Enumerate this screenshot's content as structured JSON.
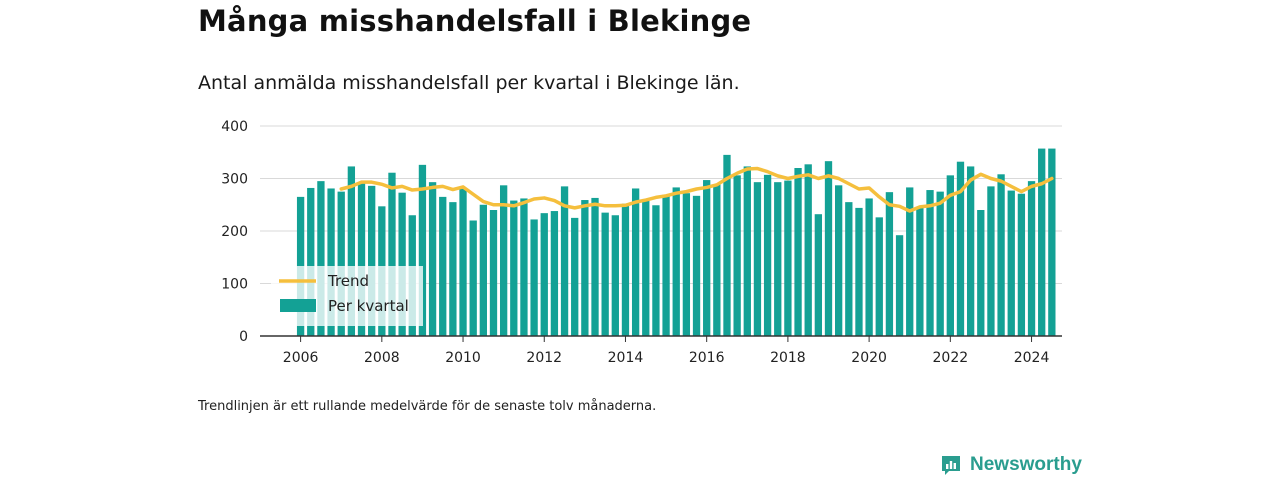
{
  "title": "Många misshandelsfall i Blekinge",
  "subtitle": "Antal anmälda misshandelsfall per kvartal i Blekinge län.",
  "footnote": "Trendlinjen är ett rullande medelvärde för de senaste tolv månaderna.",
  "brand": {
    "name": "Newsworthy",
    "icon": "newsworthy-chart-bubble-icon"
  },
  "chart_data": {
    "type": "bar",
    "title": "",
    "xlabel": "",
    "ylabel": "",
    "ylim": [
      0,
      400
    ],
    "yticks": [
      0,
      100,
      200,
      300,
      400
    ],
    "xticks": [
      2006,
      2008,
      2010,
      2012,
      2014,
      2016,
      2018,
      2020,
      2022,
      2024
    ],
    "xlim": [
      2005,
      2024.75
    ],
    "grid": true,
    "legend": {
      "placement": "bottom-left",
      "entries": [
        "Trend",
        "Per kvartal"
      ]
    },
    "colors": {
      "bars": "#13a195",
      "trend": "#f5bf3d",
      "grid": "#d9d9d9",
      "axis": "#333333"
    },
    "series": [
      {
        "name": "Per kvartal",
        "type": "bar",
        "x": [
          2006.0,
          2006.25,
          2006.5,
          2006.75,
          2007.0,
          2007.25,
          2007.5,
          2007.75,
          2008.0,
          2008.25,
          2008.5,
          2008.75,
          2009.0,
          2009.25,
          2009.5,
          2009.75,
          2010.0,
          2010.25,
          2010.5,
          2010.75,
          2011.0,
          2011.25,
          2011.5,
          2011.75,
          2012.0,
          2012.25,
          2012.5,
          2012.75,
          2013.0,
          2013.25,
          2013.5,
          2013.75,
          2014.0,
          2014.25,
          2014.5,
          2014.75,
          2015.0,
          2015.25,
          2015.5,
          2015.75,
          2016.0,
          2016.25,
          2016.5,
          2016.75,
          2017.0,
          2017.25,
          2017.5,
          2017.75,
          2018.0,
          2018.25,
          2018.5,
          2018.75,
          2019.0,
          2019.25,
          2019.5,
          2019.75,
          2020.0,
          2020.25,
          2020.5,
          2020.75,
          2021.0,
          2021.25,
          2021.5,
          2021.75,
          2022.0,
          2022.25,
          2022.5,
          2022.75,
          2023.0,
          2023.25,
          2023.5,
          2023.75,
          2024.0,
          2024.25,
          2024.5
        ],
        "values": [
          265,
          282,
          295,
          281,
          275,
          323,
          291,
          286,
          247,
          311,
          273,
          230,
          326,
          293,
          265,
          255,
          281,
          220,
          250,
          240,
          287,
          258,
          262,
          222,
          234,
          238,
          285,
          225,
          259,
          263,
          235,
          230,
          252,
          281,
          261,
          249,
          269,
          283,
          272,
          267,
          297,
          289,
          345,
          306,
          323,
          293,
          307,
          293,
          296,
          320,
          327,
          232,
          333,
          287,
          255,
          244,
          262,
          226,
          274,
          192,
          283,
          246,
          278,
          275,
          306,
          332,
          323,
          240,
          285,
          308,
          277,
          271,
          295,
          357,
          357
        ],
        "trend": [
          null,
          null,
          null,
          null,
          280,
          285,
          293,
          293,
          289,
          282,
          285,
          278,
          280,
          283,
          285,
          279,
          284,
          270,
          256,
          250,
          250,
          248,
          254,
          261,
          263,
          258,
          248,
          244,
          248,
          251,
          248,
          248,
          249,
          255,
          259,
          264,
          267,
          272,
          275,
          280,
          283,
          288,
          300,
          310,
          318,
          319,
          313,
          305,
          300,
          304,
          307,
          300,
          305,
          300,
          290,
          280,
          282,
          265,
          250,
          247,
          238,
          246,
          248,
          253,
          268,
          275,
          297,
          308,
          300,
          295,
          285,
          275,
          285,
          290,
          300
        ]
      }
    ]
  }
}
